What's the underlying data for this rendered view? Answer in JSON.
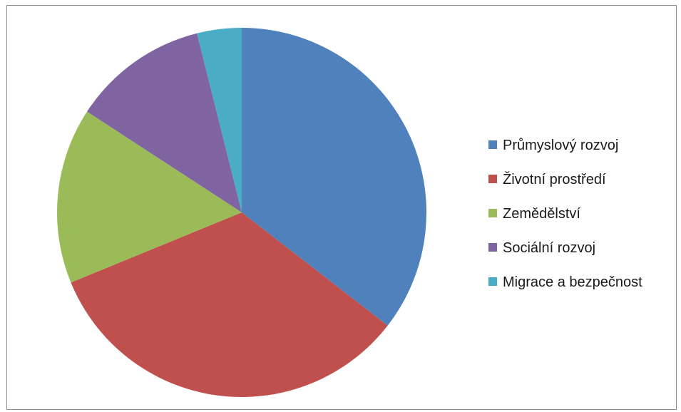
{
  "chart_data": {
    "type": "pie",
    "title": "",
    "categories": [
      "Průmyslový rozvoj",
      "Životní prostředí",
      "Zemědělství",
      "Sociální rozvoj",
      "Migrace a bezpečnost"
    ],
    "values": [
      35.5,
      33.3,
      15.4,
      11.9,
      3.9
    ],
    "colors": [
      "#4f81bd",
      "#c0504d",
      "#9bbb59",
      "#8064a2",
      "#4bacc6"
    ],
    "start_angle_deg": 0,
    "direction": "clockwise",
    "legend_position": "right"
  }
}
